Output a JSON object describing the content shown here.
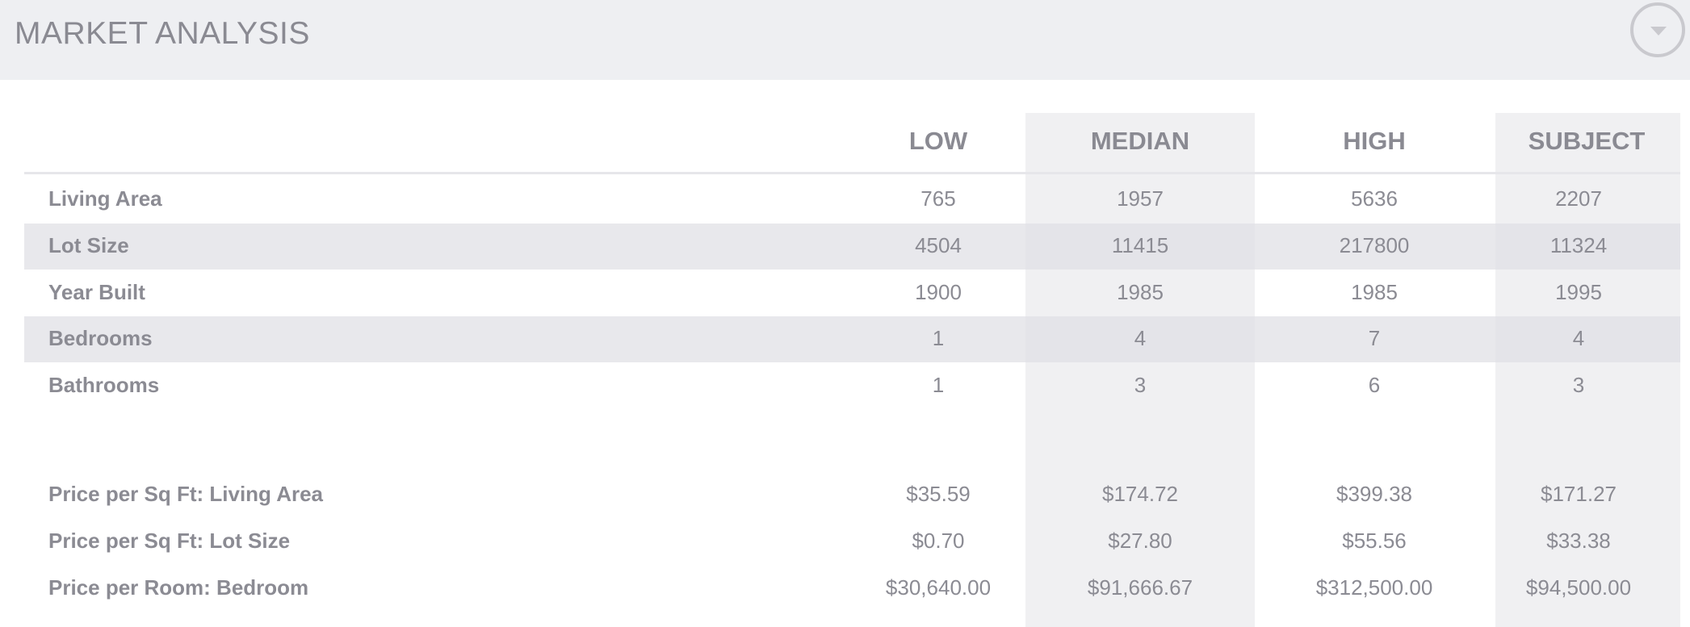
{
  "header": {
    "title": "MARKET ANALYSIS"
  },
  "columns": [
    "LOW",
    "MEDIAN",
    "HIGH",
    "SUBJECT"
  ],
  "rows": [
    {
      "label": "Living Area",
      "values": [
        "765",
        "1957",
        "5636",
        "2207"
      ]
    },
    {
      "label": "Lot Size",
      "values": [
        "4504",
        "11415",
        "217800",
        "11324"
      ]
    },
    {
      "label": "Year Built",
      "values": [
        "1900",
        "1985",
        "1985",
        "1995"
      ]
    },
    {
      "label": "Bedrooms",
      "values": [
        "1",
        "4",
        "7",
        "4"
      ]
    },
    {
      "label": "Bathrooms",
      "values": [
        "1",
        "3",
        "6",
        "3"
      ]
    }
  ],
  "price_rows": [
    {
      "label": "Price per Sq Ft: Living Area",
      "values": [
        "$35.59",
        "$174.72",
        "$399.38",
        "$171.27"
      ]
    },
    {
      "label": "Price per Sq Ft: Lot Size",
      "values": [
        "$0.70",
        "$27.80",
        "$55.56",
        "$33.38"
      ]
    },
    {
      "label": "Price per Room: Bedroom",
      "values": [
        "$30,640.00",
        "$91,666.67",
        "$312,500.00",
        "$94,500.00"
      ]
    }
  ]
}
